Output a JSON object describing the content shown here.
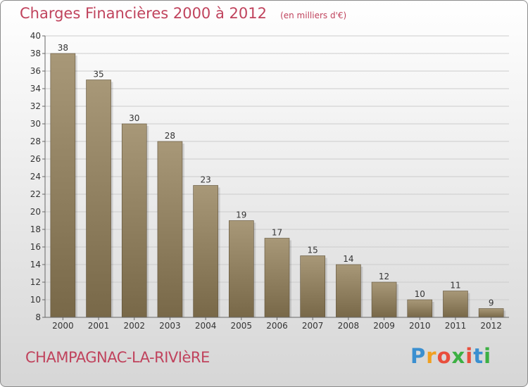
{
  "title": "Charges Financières 2000 à 2012",
  "unit_note": "(en milliers d'€)",
  "commune": "CHAMPAGNAC-LA-RIVIèRE",
  "brand": {
    "letters": [
      "P",
      "r",
      "o",
      "x",
      "i",
      "t",
      "i"
    ],
    "colors": [
      "#3a8fd0",
      "#f0a020",
      "#e94e3c",
      "#3cb043",
      "#e94e3c",
      "#3a8fd0",
      "#3cb043"
    ]
  },
  "colors": {
    "bar_light": "#a89878",
    "bar_dark": "#786848",
    "grid": "#cccccc",
    "accent": "#c0435d"
  },
  "chart_data": {
    "type": "bar",
    "categories": [
      "2000",
      "2001",
      "2002",
      "2003",
      "2004",
      "2005",
      "2006",
      "2007",
      "2008",
      "2009",
      "2010",
      "2011",
      "2012"
    ],
    "values": [
      38,
      35,
      30,
      28,
      23,
      19,
      17,
      15,
      14,
      12,
      10,
      11,
      9
    ],
    "ylim": [
      8,
      40
    ],
    "yticks": [
      8,
      10,
      12,
      14,
      16,
      18,
      20,
      22,
      24,
      26,
      28,
      30,
      32,
      34,
      36,
      38,
      40
    ],
    "grid": true
  }
}
